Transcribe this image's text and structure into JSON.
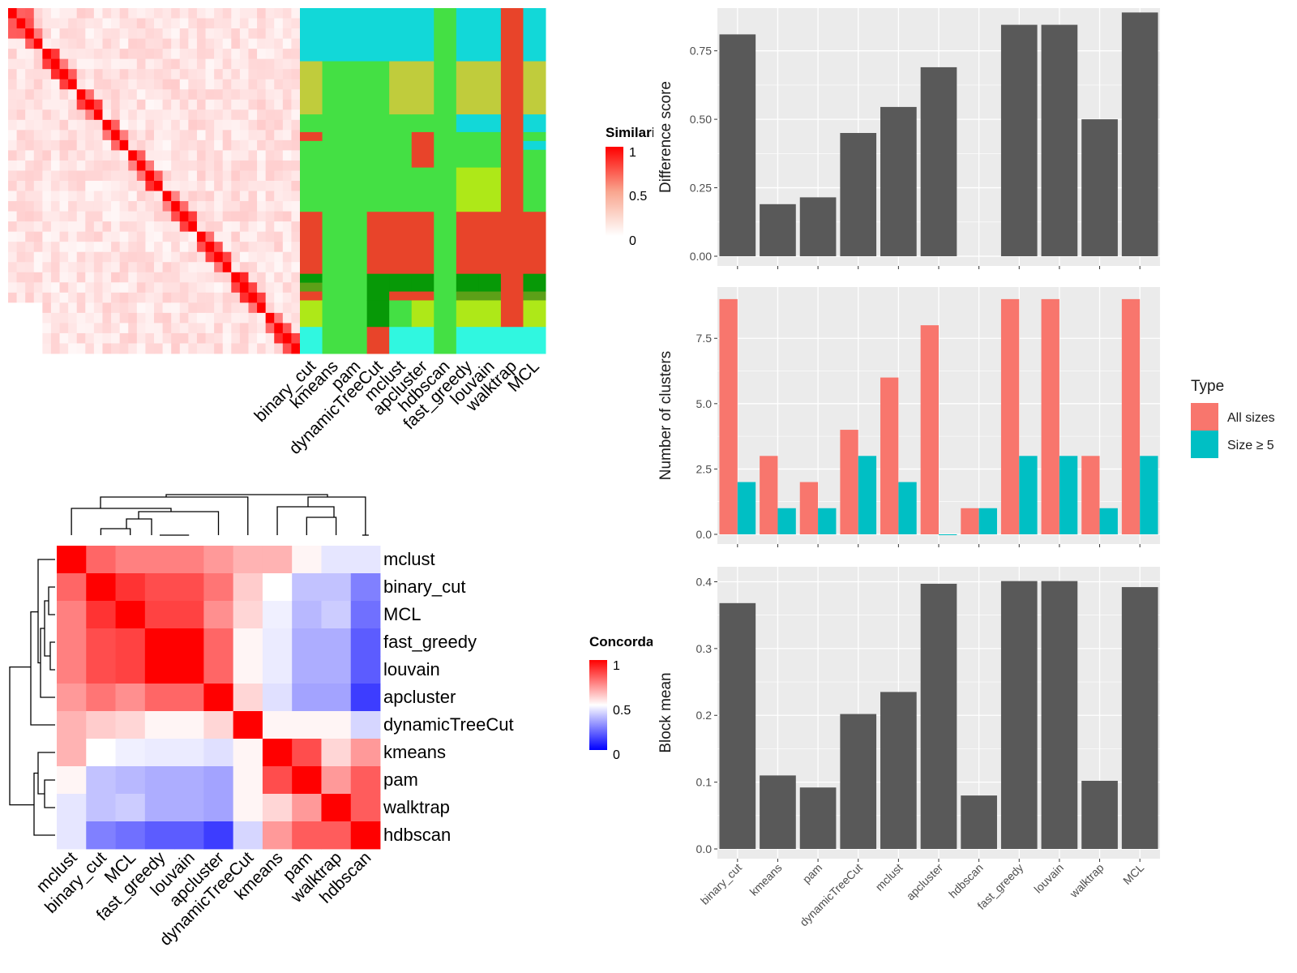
{
  "chart_data": [
    {
      "type": "heatmap",
      "legend": {
        "title": "Similarity",
        "ticks": [
          "1",
          "0.5",
          "0"
        ]
      },
      "columns": [
        "binary_cut",
        "kmeans",
        "pam",
        "dynamicTreeCut",
        "mclust",
        "apcluster",
        "hdbscan",
        "fast_greedy",
        "louvain",
        "walktrap",
        "MCL"
      ]
    },
    {
      "type": "heatmap",
      "legend": {
        "title": "Concordance",
        "ticks": [
          "1",
          "0.5",
          "0"
        ]
      },
      "labels": [
        "mclust",
        "binary_cut",
        "MCL",
        "fast_greedy",
        "louvain",
        "apcluster",
        "dynamicTreeCut",
        "kmeans",
        "pam",
        "walktrap",
        "hdbscan"
      ],
      "values": [
        [
          1.0,
          0.8,
          0.75,
          0.75,
          0.75,
          0.7,
          0.65,
          0.65,
          0.52,
          0.45,
          0.45
        ],
        [
          0.8,
          1.0,
          0.9,
          0.85,
          0.85,
          0.77,
          0.6,
          0.5,
          0.38,
          0.38,
          0.25
        ],
        [
          0.75,
          0.9,
          1.0,
          0.87,
          0.87,
          0.72,
          0.58,
          0.47,
          0.36,
          0.4,
          0.22
        ],
        [
          0.75,
          0.85,
          0.87,
          1.0,
          1.0,
          0.8,
          0.52,
          0.46,
          0.34,
          0.34,
          0.18
        ],
        [
          0.75,
          0.85,
          0.87,
          1.0,
          1.0,
          0.8,
          0.52,
          0.46,
          0.34,
          0.34,
          0.18
        ],
        [
          0.7,
          0.77,
          0.72,
          0.8,
          0.8,
          1.0,
          0.58,
          0.44,
          0.32,
          0.32,
          0.12
        ],
        [
          0.65,
          0.6,
          0.58,
          0.52,
          0.52,
          0.58,
          1.0,
          0.52,
          0.52,
          0.52,
          0.42
        ],
        [
          0.65,
          0.5,
          0.47,
          0.46,
          0.46,
          0.44,
          0.52,
          1.0,
          0.85,
          0.58,
          0.7
        ],
        [
          0.52,
          0.38,
          0.36,
          0.34,
          0.34,
          0.32,
          0.52,
          0.85,
          1.0,
          0.7,
          0.82
        ],
        [
          0.45,
          0.38,
          0.4,
          0.34,
          0.34,
          0.32,
          0.52,
          0.58,
          0.7,
          1.0,
          0.82
        ],
        [
          0.45,
          0.25,
          0.22,
          0.18,
          0.18,
          0.12,
          0.42,
          0.7,
          0.82,
          0.82,
          1.0
        ]
      ]
    },
    {
      "type": "bar",
      "ylabel": "Difference score",
      "ylim": [
        0,
        0.9
      ],
      "yticks": [
        "0.00",
        "0.25",
        "0.50",
        "0.75"
      ],
      "categories": [
        "binary_cut",
        "kmeans",
        "pam",
        "dynamicTreeCut",
        "mclust",
        "apcluster",
        "hdbscan",
        "fast_greedy",
        "louvain",
        "walktrap",
        "MCL"
      ],
      "values": [
        0.81,
        0.19,
        0.215,
        0.45,
        0.545,
        0.69,
        0,
        0.845,
        0.845,
        0.5,
        0.89
      ]
    },
    {
      "type": "bar",
      "ylabel": "Number of clusters",
      "ylim": [
        0,
        9.4
      ],
      "yticks": [
        "0.0",
        "2.5",
        "5.0",
        "7.5"
      ],
      "legend": {
        "title": "Type",
        "position": "right"
      },
      "categories": [
        "binary_cut",
        "kmeans",
        "pam",
        "dynamicTreeCut",
        "mclust",
        "apcluster",
        "hdbscan",
        "fast_greedy",
        "louvain",
        "walktrap",
        "MCL"
      ],
      "series": [
        {
          "name": "All sizes",
          "color": "#F8766D",
          "values": [
            9,
            3,
            2,
            4,
            6,
            8,
            1,
            9,
            9,
            3,
            9
          ]
        },
        {
          "name": "Size ≥ 5",
          "color": "#00BFC4",
          "values": [
            2,
            1,
            1,
            3,
            2,
            0,
            1,
            3,
            3,
            1,
            3
          ]
        }
      ]
    },
    {
      "type": "bar",
      "ylabel": "Block mean",
      "ylim": [
        0,
        0.42
      ],
      "yticks": [
        "0.0",
        "0.1",
        "0.2",
        "0.3",
        "0.4"
      ],
      "categories": [
        "binary_cut",
        "kmeans",
        "pam",
        "dynamicTreeCut",
        "mclust",
        "apcluster",
        "hdbscan",
        "fast_greedy",
        "louvain",
        "walktrap",
        "MCL"
      ],
      "values": [
        0.368,
        0.11,
        0.092,
        0.202,
        0.235,
        0.397,
        0.08,
        0.401,
        0.401,
        0.102,
        0.392
      ]
    }
  ],
  "colors": {
    "panel_bg": "#EBEBEB",
    "bar": "#595959",
    "cluster_palette": [
      "#12D8D8",
      "#C0CC3C",
      "#44E044",
      "#E8442A",
      "#079907",
      "#5CA018",
      "#AEE818",
      "#30F7E0"
    ]
  }
}
